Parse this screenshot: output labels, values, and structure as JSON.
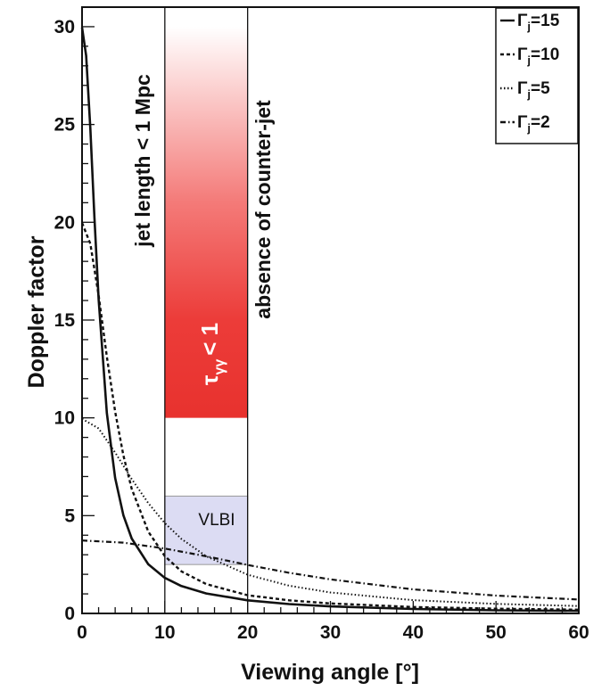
{
  "chart_data": {
    "type": "line",
    "xlabel": "Viewing angle [°]",
    "ylabel": "Doppler factor",
    "xlim": [
      0,
      60
    ],
    "ylim": [
      0,
      31
    ],
    "x_ticks": [
      "0",
      "10",
      "20",
      "30",
      "40",
      "50",
      "60"
    ],
    "y_ticks": [
      "0",
      "5",
      "10",
      "15",
      "20",
      "25",
      "30"
    ],
    "series": [
      {
        "name": "Γj=15",
        "gamma": 15,
        "style": "solid",
        "x": [
          0,
          0.5,
          1,
          1.5,
          2,
          3,
          4,
          5,
          6,
          8,
          10,
          12,
          15,
          20,
          25,
          30,
          40,
          50,
          60
        ],
        "y": [
          29.96,
          28.52,
          24.79,
          20.23,
          16.06,
          10.25,
          6.93,
          5.01,
          3.83,
          2.51,
          1.82,
          1.4,
          1.02,
          0.67,
          0.48,
          0.36,
          0.23,
          0.16,
          0.13
        ]
      },
      {
        "name": "Γj=10",
        "gamma": 10,
        "style": "dashed",
        "x": [
          0,
          1,
          2,
          3,
          4,
          5,
          6,
          8,
          10,
          12,
          15,
          20,
          25,
          30,
          40,
          50,
          60
        ],
        "y": [
          19.97,
          18.9,
          16.26,
          13.13,
          10.32,
          8.07,
          6.37,
          4.18,
          2.93,
          2.15,
          1.5,
          0.93,
          0.67,
          0.51,
          0.33,
          0.24,
          0.19
        ]
      },
      {
        "name": "Γj=5",
        "gamma": 5,
        "style": "dotted",
        "x": [
          0,
          2,
          4,
          6,
          8,
          10,
          12,
          15,
          20,
          25,
          30,
          40,
          50,
          60
        ],
        "y": [
          9.95,
          9.46,
          8.23,
          6.87,
          5.64,
          4.62,
          3.81,
          2.92,
          1.98,
          1.42,
          1.07,
          0.68,
          0.49,
          0.38
        ]
      },
      {
        "name": "Γj=2",
        "gamma": 2,
        "style": "dashdot",
        "x": [
          0,
          5,
          10,
          15,
          20,
          25,
          30,
          40,
          50,
          60
        ],
        "y": [
          3.73,
          3.62,
          3.32,
          2.92,
          2.48,
          2.08,
          1.74,
          1.23,
          0.91,
          0.71
        ]
      }
    ],
    "regions": [
      {
        "name": "tau-region",
        "x": [
          10,
          20
        ],
        "y": [
          10,
          30
        ],
        "color": "#e8322e"
      },
      {
        "name": "vlbi-region",
        "x": [
          10,
          20
        ],
        "y": [
          2.5,
          6
        ],
        "color": "#dcdcf3"
      }
    ],
    "annotations": {
      "jet_length": "jet length < 1 Mpc",
      "counter_jet": "absence of counter-jet",
      "vlbi": "VLBI",
      "tau_symbol": "τ",
      "tau_sub": "γγ",
      "tau_rest": "< 1"
    },
    "legend": {
      "position": "top-right",
      "entries": [
        {
          "prefix": "Γ",
          "sub": "j",
          "value": "=15",
          "style": "solid"
        },
        {
          "prefix": "Γ",
          "sub": "j",
          "value": "=10",
          "style": "dashed"
        },
        {
          "prefix": "Γ",
          "sub": "j",
          "value": "=5",
          "style": "dotted"
        },
        {
          "prefix": "Γ",
          "sub": "j",
          "value": "=2",
          "style": "dashdot"
        }
      ]
    }
  }
}
